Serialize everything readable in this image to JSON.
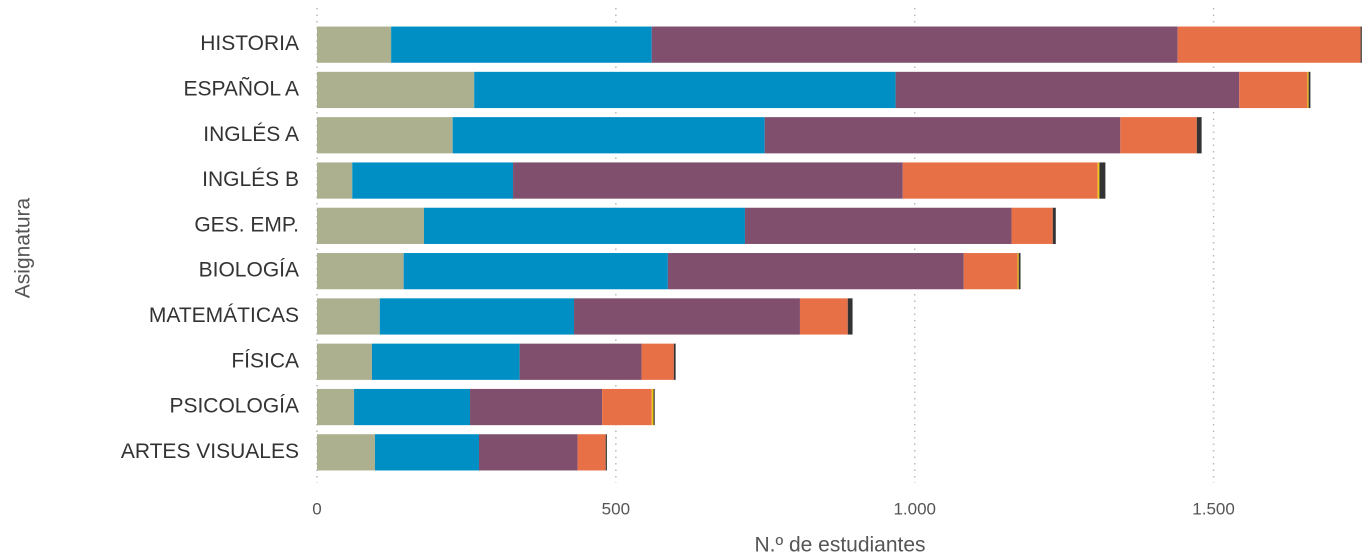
{
  "chart_data": {
    "type": "stacked_bar_horizontal",
    "x_label": "N.º de estudiantes",
    "y_label": "Asignatura",
    "categories": [
      "HISTORIA",
      "ESPAÑOL A",
      "INGLÉS A",
      "INGLÉS B",
      "GES. EMP.",
      "BIOLOGÍA",
      "MATEMÁTICAS",
      "FÍSICA",
      "PSICOLOGÍA",
      "ARTES VISUALES"
    ],
    "series": [
      {
        "color": "#adb08f",
        "values": [
          124,
          263,
          227,
          59,
          179,
          145,
          105,
          92,
          62,
          97
        ]
      },
      {
        "color": "#008fc5",
        "values": [
          436,
          705,
          522,
          269,
          537,
          442,
          325,
          247,
          194,
          174
        ]
      },
      {
        "color": "#804f6e",
        "values": [
          880,
          575,
          595,
          652,
          446,
          495,
          378,
          204,
          221,
          165
        ]
      },
      {
        "color": "#e87046",
        "values": [
          306,
          114,
          128,
          326,
          69,
          90,
          80,
          54,
          83,
          47
        ]
      },
      {
        "color": "#f0c419",
        "values": [
          0,
          2,
          0,
          3,
          0,
          2,
          0,
          0,
          3,
          0
        ]
      },
      {
        "color": "#333333",
        "values": [
          2,
          3,
          8,
          10,
          5,
          3,
          8,
          3,
          2,
          2
        ]
      }
    ],
    "xlim": [
      0,
      1750
    ],
    "xticks": [
      0,
      500,
      {
        "value": 1000,
        "label": "1.000"
      },
      {
        "value": 1500,
        "label": "1.500"
      }
    ],
    "grid": true
  }
}
